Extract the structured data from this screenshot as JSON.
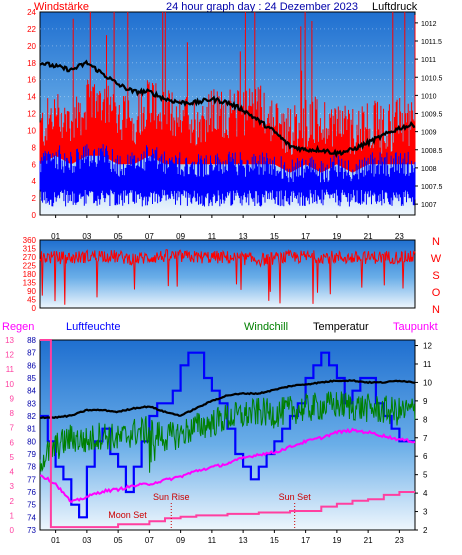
{
  "header": {
    "left": "Windstärke",
    "center": "24 hour graph day : 24 Dezember 2023",
    "right": "Luftdruck"
  },
  "colors": {
    "red": "#ff0000",
    "blue": "#0000ff",
    "black": "#000000",
    "green": "#008000",
    "magenta": "#ff00ff",
    "pink": "#ff3fa0",
    "axis_blue": "#0000aa"
  },
  "chart_data": [
    {
      "type": "line",
      "panel": "wind_pressure",
      "x_tick_labels": [
        "01",
        "03",
        "05",
        "07",
        "09",
        "11",
        "13",
        "15",
        "17",
        "19",
        "21",
        "23"
      ],
      "xlim": [
        0,
        24
      ],
      "left_axis": {
        "label": "Windstärke",
        "ticks": [
          0,
          2,
          4,
          6,
          8,
          10,
          12,
          14,
          16,
          18,
          20,
          22,
          24
        ],
        "ylim": [
          0,
          24
        ]
      },
      "right_axis": {
        "label": "Luftdruck",
        "ticks": [
          "1007",
          "1007.5",
          "1008",
          "1008.5",
          "1009",
          "1009.5",
          "1010",
          "1010.5",
          "1011",
          "1011.5",
          "1012"
        ],
        "ylim": [
          1006.7,
          1012.3
        ]
      },
      "series": [
        {
          "name": "Luftdruck",
          "color": "#000000",
          "axis": "right",
          "x": [
            0,
            1,
            2,
            3,
            4,
            5,
            6,
            7,
            8,
            9,
            10,
            11,
            12,
            13,
            14,
            15,
            16,
            17,
            18,
            19,
            20,
            21,
            22,
            23,
            24
          ],
          "y": [
            1010.9,
            1010.8,
            1010.7,
            1010.9,
            1010.6,
            1010.3,
            1010.1,
            1010.1,
            1009.9,
            1009.8,
            1009.8,
            1009.9,
            1009.8,
            1009.6,
            1009.3,
            1009.0,
            1008.6,
            1008.5,
            1008.5,
            1008.4,
            1008.5,
            1008.7,
            1008.9,
            1009.1,
            1009.2
          ]
        },
        {
          "name": "Windstärke max",
          "color": "#ff0000",
          "axis": "left",
          "x": [
            0,
            1,
            2,
            3,
            4,
            5,
            6,
            7,
            8,
            9,
            10,
            11,
            12,
            13,
            14,
            15,
            16,
            17,
            18,
            19,
            20,
            21,
            22,
            23,
            24
          ],
          "y": [
            10,
            12,
            11,
            13,
            14,
            12,
            11,
            14,
            12,
            12,
            11,
            12,
            12,
            12,
            13,
            11,
            10,
            11,
            11,
            11,
            10,
            11,
            10,
            11,
            11
          ]
        },
        {
          "name": "Windstärke mittel",
          "color": "#0000ff",
          "axis": "left",
          "x": [
            0,
            1,
            2,
            3,
            4,
            5,
            6,
            7,
            8,
            9,
            10,
            11,
            12,
            13,
            14,
            15,
            16,
            17,
            18,
            19,
            20,
            21,
            22,
            23,
            24
          ],
          "y": [
            5,
            6,
            5,
            6,
            6,
            5,
            5,
            6,
            5,
            5,
            5,
            5,
            5,
            5,
            5,
            5,
            4,
            5,
            4,
            5,
            4,
            5,
            5,
            5,
            5
          ]
        }
      ]
    },
    {
      "type": "line",
      "panel": "wind_direction",
      "xlim": [
        0,
        24
      ],
      "left_axis": {
        "ticks": [
          0,
          45,
          90,
          135,
          180,
          225,
          270,
          315,
          360
        ],
        "ylim": [
          0,
          360
        ]
      },
      "right_axis": {
        "ticks": [
          "N",
          "W",
          "S",
          "O",
          "N"
        ]
      },
      "series": [
        {
          "name": "Windrichtung",
          "color": "#ff0000",
          "x": [
            0,
            2,
            4,
            6,
            8,
            10,
            12,
            14,
            16,
            18,
            20,
            22,
            24
          ],
          "y": [
            270,
            265,
            280,
            260,
            275,
            270,
            268,
            255,
            270,
            272,
            265,
            270,
            268
          ]
        }
      ]
    },
    {
      "type": "line",
      "panel": "climate",
      "legend": [
        "Regen",
        "Luftfeuchte",
        "Windchill",
        "Temperatur",
        "Taupunkt"
      ],
      "x_tick_labels": [
        "01",
        "03",
        "05",
        "07",
        "09",
        "11",
        "13",
        "15",
        "17",
        "19",
        "21",
        "23"
      ],
      "xlim": [
        0,
        24
      ],
      "rain_axis": {
        "ticks": [
          0,
          1,
          2,
          3,
          4,
          5,
          6,
          7,
          8,
          9,
          10,
          11,
          12,
          13
        ],
        "ylim": [
          0,
          13
        ]
      },
      "humidity_axis": {
        "ticks": [
          73,
          74,
          75,
          76,
          77,
          78,
          79,
          80,
          81,
          82,
          83,
          84,
          85,
          86,
          87,
          88
        ],
        "ylim": [
          73,
          88
        ]
      },
      "temp_axis": {
        "ticks": [
          2,
          3,
          4,
          5,
          6,
          7,
          8,
          9,
          10,
          11,
          12
        ],
        "ylim": [
          2,
          12.3
        ]
      },
      "annotations": [
        {
          "text": "Moon Set",
          "x": 5.6
        },
        {
          "text": "Sun Rise",
          "x": 8.4
        },
        {
          "text": "Sun Set",
          "x": 16.3
        }
      ],
      "series": [
        {
          "name": "Luftfeuchte",
          "color": "#0000ff",
          "axis": "humidity",
          "x": [
            0,
            0.5,
            1,
            1.5,
            2,
            2.5,
            3,
            3.5,
            4,
            4.5,
            5,
            5.5,
            6,
            6.5,
            7,
            7.5,
            8,
            8.5,
            9,
            9.5,
            10,
            10.5,
            11,
            11.5,
            12,
            12.5,
            13,
            13.5,
            14,
            14.5,
            15,
            15.5,
            16,
            16.5,
            17,
            17.5,
            18,
            18.5,
            19,
            19.5,
            20,
            20.5,
            21,
            21.5,
            22,
            22.5,
            23,
            23.5,
            24
          ],
          "y": [
            82,
            80,
            78,
            77,
            75,
            74,
            78,
            80,
            81,
            79,
            78,
            76,
            78,
            80,
            82,
            83,
            83,
            84,
            86,
            87,
            87,
            85,
            84,
            83,
            81,
            79,
            78,
            77,
            78,
            79,
            80,
            81,
            82,
            83,
            85,
            86,
            87,
            86,
            85,
            83,
            84,
            85,
            85,
            83,
            82,
            81,
            80,
            80,
            80
          ]
        },
        {
          "name": "Temperatur",
          "color": "#000000",
          "axis": "temp",
          "x": [
            0,
            1,
            2,
            3,
            4,
            5,
            6,
            7,
            8,
            9,
            10,
            11,
            12,
            13,
            14,
            15,
            16,
            17,
            18,
            19,
            20,
            21,
            22,
            23,
            24
          ],
          "y": [
            8.1,
            8.1,
            8.2,
            8.5,
            8.5,
            8.4,
            8.6,
            8.7,
            8.4,
            8.2,
            8.6,
            9.0,
            9.3,
            9.4,
            9.4,
            9.6,
            9.8,
            9.9,
            10.0,
            10.1,
            10.1,
            10.0,
            10.0,
            10.1,
            10.0
          ]
        },
        {
          "name": "Windchill",
          "color": "#008000",
          "axis": "temp",
          "x": [
            0,
            1,
            2,
            3,
            4,
            5,
            6,
            7,
            8,
            9,
            10,
            11,
            12,
            13,
            14,
            15,
            16,
            17,
            18,
            19,
            20,
            21,
            22,
            23,
            24
          ],
          "y": [
            5.8,
            6.5,
            7.0,
            6.8,
            7.2,
            6.9,
            7.3,
            7.4,
            7.0,
            7.2,
            7.6,
            7.8,
            8.1,
            8.2,
            8.4,
            8.3,
            8.5,
            8.6,
            8.7,
            8.8,
            8.7,
            8.6,
            8.5,
            8.4,
            8.5
          ]
        },
        {
          "name": "Taupunkt",
          "color": "#ff00ff",
          "axis": "temp",
          "x": [
            0,
            1,
            2,
            3,
            4,
            5,
            6,
            7,
            8,
            9,
            10,
            11,
            12,
            13,
            14,
            15,
            16,
            17,
            18,
            19,
            20,
            21,
            22,
            23,
            24
          ],
          "y": [
            5.0,
            4.5,
            3.5,
            3.8,
            4.1,
            4.2,
            4.4,
            4.5,
            4.7,
            4.9,
            5.2,
            5.4,
            5.6,
            5.9,
            6.1,
            6.2,
            6.5,
            6.8,
            7.0,
            7.3,
            7.4,
            7.3,
            7.1,
            6.9,
            6.8
          ]
        },
        {
          "name": "Regen",
          "color": "#ff3fa0",
          "axis": "rain",
          "x": [
            0,
            0.4,
            0.7,
            2,
            4,
            5,
            6,
            7,
            8,
            9,
            10,
            11,
            12,
            13,
            14,
            15,
            16,
            17,
            18,
            19,
            20,
            21,
            22,
            23,
            24
          ],
          "y": [
            13,
            13,
            0.2,
            0.2,
            0.2,
            0.4,
            0.4,
            0.6,
            0.8,
            0.9,
            1.0,
            1.0,
            1.1,
            1.1,
            1.2,
            1.2,
            1.3,
            1.3,
            1.6,
            1.8,
            2.0,
            2.1,
            2.4,
            2.6,
            2.6
          ]
        }
      ]
    }
  ]
}
